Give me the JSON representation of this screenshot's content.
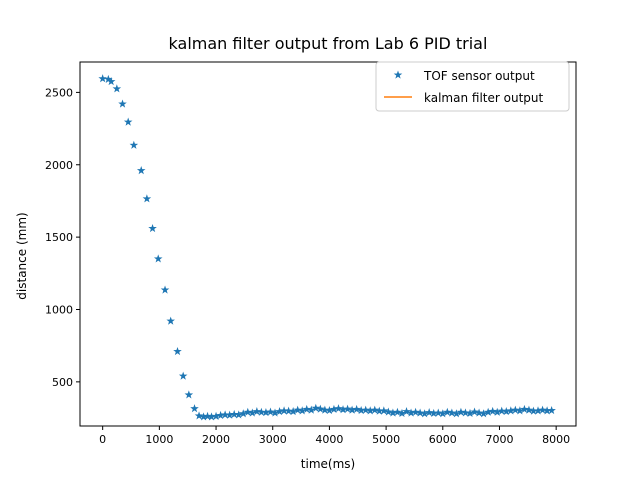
{
  "chart_data": {
    "type": "scatter",
    "title": "kalman filter output from Lab 6 PID trial",
    "xlabel": "time(ms)",
    "ylabel": "distance (mm)",
    "xlim": [
      -400,
      8350
    ],
    "ylim": [
      195,
      2710
    ],
    "xticks": [
      0,
      1000,
      2000,
      3000,
      4000,
      5000,
      6000,
      7000,
      8000
    ],
    "yticks": [
      500,
      1000,
      1500,
      2000,
      2500
    ],
    "legend": {
      "placement": "top-right"
    },
    "series": [
      {
        "name": "TOF sensor output",
        "marker": "star",
        "color": "#1f77b4",
        "x": [
          0,
          100,
          150,
          250,
          350,
          450,
          550,
          680,
          780,
          880,
          980,
          1100,
          1200,
          1320,
          1420,
          1520,
          1620,
          1700,
          1780,
          1850,
          1920,
          2000,
          2080,
          2160,
          2240,
          2320,
          2400,
          2480,
          2560,
          2640,
          2720,
          2800,
          2880,
          2960,
          3040,
          3120,
          3200,
          3280,
          3360,
          3440,
          3520,
          3600,
          3680,
          3760,
          3840,
          3920,
          4000,
          4080,
          4160,
          4240,
          4320,
          4400,
          4480,
          4560,
          4640,
          4720,
          4800,
          4880,
          4960,
          5040,
          5120,
          5200,
          5280,
          5360,
          5440,
          5520,
          5600,
          5680,
          5760,
          5840,
          5920,
          6000,
          6080,
          6160,
          6240,
          6320,
          6400,
          6480,
          6560,
          6640,
          6720,
          6800,
          6880,
          6960,
          7040,
          7120,
          7200,
          7280,
          7360,
          7440,
          7520,
          7600,
          7680,
          7760,
          7840,
          7920
        ],
        "y": [
          2595,
          2590,
          2575,
          2525,
          2420,
          2295,
          2135,
          1960,
          1765,
          1560,
          1350,
          1135,
          920,
          710,
          540,
          410,
          315,
          265,
          258,
          262,
          258,
          262,
          268,
          272,
          270,
          275,
          272,
          280,
          290,
          285,
          295,
          290,
          288,
          292,
          285,
          295,
          300,
          298,
          295,
          305,
          300,
          310,
          305,
          318,
          312,
          305,
          302,
          310,
          315,
          308,
          312,
          305,
          310,
          302,
          305,
          300,
          305,
          298,
          300,
          292,
          285,
          290,
          282,
          295,
          285,
          290,
          285,
          280,
          288,
          282,
          285,
          280,
          290,
          285,
          280,
          290,
          286,
          282,
          292,
          285,
          280,
          290,
          296,
          290,
          298,
          295,
          300,
          305,
          300,
          310,
          305,
          298,
          300,
          305,
          300,
          302
        ]
      },
      {
        "name": "kalman filter output",
        "marker": "line",
        "color": "#ff7f0e",
        "x": [],
        "y": []
      }
    ]
  }
}
